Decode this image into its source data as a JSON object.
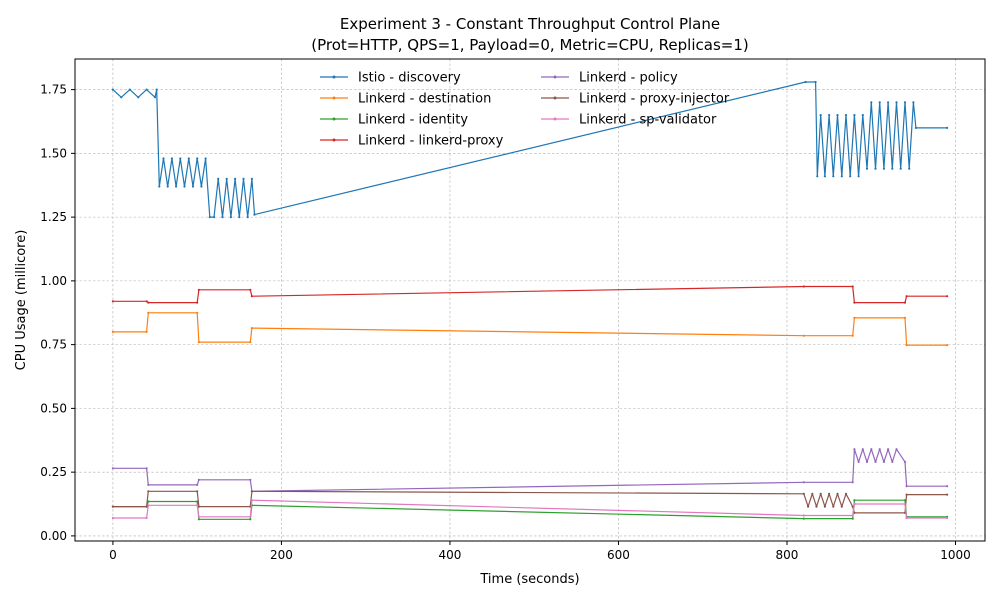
{
  "chart_data": {
    "type": "line",
    "title": "Experiment 3 - Constant Throughput Control Plane",
    "subtitle": "(Prot=HTTP, QPS=1, Payload=0, Metric=CPU, Replicas=1)",
    "xlabel": "Time (seconds)",
    "ylabel": "CPU Usage (millicore)",
    "xlim": [
      -45,
      1035
    ],
    "ylim": [
      -0.02,
      1.87
    ],
    "xticks": [
      0,
      200,
      400,
      600,
      800,
      1000
    ],
    "yticks": [
      0.0,
      0.25,
      0.5,
      0.75,
      1.0,
      1.25,
      1.5,
      1.75
    ],
    "xtick_labels": [
      "0",
      "200",
      "400",
      "600",
      "800",
      "1000"
    ],
    "ytick_labels": [
      "0.00",
      "0.25",
      "0.50",
      "0.75",
      "1.00",
      "1.25",
      "1.50",
      "1.75"
    ],
    "grid": true,
    "legend": "upper center, 2 columns",
    "series": [
      {
        "name": "Istio - discovery",
        "color": "#1f77b4",
        "segments": [
          [
            0,
            1.75
          ],
          [
            10,
            1.72
          ],
          [
            20,
            1.75
          ],
          [
            30,
            1.72
          ],
          [
            40,
            1.75
          ],
          [
            50,
            1.72
          ],
          [
            52,
            1.75
          ],
          [
            55,
            1.37
          ],
          [
            60,
            1.48
          ],
          [
            65,
            1.37
          ],
          [
            70,
            1.48
          ],
          [
            75,
            1.37
          ],
          [
            80,
            1.48
          ],
          [
            85,
            1.37
          ],
          [
            90,
            1.48
          ],
          [
            95,
            1.37
          ],
          [
            100,
            1.48
          ],
          [
            105,
            1.37
          ],
          [
            110,
            1.48
          ],
          [
            115,
            1.25
          ],
          [
            120,
            1.25
          ],
          [
            125,
            1.4
          ],
          [
            130,
            1.25
          ],
          [
            135,
            1.4
          ],
          [
            140,
            1.25
          ],
          [
            145,
            1.4
          ],
          [
            150,
            1.25
          ],
          [
            155,
            1.4
          ],
          [
            160,
            1.25
          ],
          [
            165,
            1.4
          ],
          [
            168,
            1.26
          ],
          [
            822,
            1.78
          ],
          [
            834,
            1.78
          ],
          [
            836,
            1.41
          ],
          [
            840,
            1.65
          ],
          [
            845,
            1.41
          ],
          [
            850,
            1.65
          ],
          [
            855,
            1.41
          ],
          [
            860,
            1.65
          ],
          [
            865,
            1.41
          ],
          [
            870,
            1.65
          ],
          [
            875,
            1.41
          ],
          [
            880,
            1.65
          ],
          [
            885,
            1.41
          ],
          [
            890,
            1.65
          ],
          [
            895,
            1.44
          ],
          [
            900,
            1.7
          ],
          [
            905,
            1.44
          ],
          [
            910,
            1.7
          ],
          [
            915,
            1.44
          ],
          [
            920,
            1.7
          ],
          [
            925,
            1.44
          ],
          [
            930,
            1.7
          ],
          [
            935,
            1.44
          ],
          [
            940,
            1.7
          ],
          [
            945,
            1.44
          ],
          [
            950,
            1.7
          ],
          [
            953,
            1.6
          ],
          [
            990,
            1.6
          ]
        ]
      },
      {
        "name": "Linkerd - destination",
        "color": "#ff7f0e",
        "segments": [
          [
            0,
            0.8
          ],
          [
            40,
            0.8
          ],
          [
            42,
            0.875
          ],
          [
            100,
            0.875
          ],
          [
            102,
            0.76
          ],
          [
            163,
            0.76
          ],
          [
            165,
            0.815
          ],
          [
            820,
            0.785
          ],
          [
            878,
            0.785
          ],
          [
            880,
            0.855
          ],
          [
            940,
            0.855
          ],
          [
            942,
            0.748
          ],
          [
            990,
            0.748
          ]
        ]
      },
      {
        "name": "Linkerd - identity",
        "color": "#2ca02c",
        "segments": [
          [
            0,
            0.115
          ],
          [
            40,
            0.115
          ],
          [
            42,
            0.135
          ],
          [
            100,
            0.135
          ],
          [
            102,
            0.065
          ],
          [
            163,
            0.065
          ],
          [
            165,
            0.12
          ],
          [
            820,
            0.068
          ],
          [
            878,
            0.068
          ],
          [
            880,
            0.14
          ],
          [
            940,
            0.14
          ],
          [
            942,
            0.075
          ],
          [
            990,
            0.075
          ]
        ]
      },
      {
        "name": "Linkerd - linkerd-proxy",
        "color": "#d62728",
        "segments": [
          [
            0,
            0.92
          ],
          [
            40,
            0.92
          ],
          [
            42,
            0.915
          ],
          [
            100,
            0.915
          ],
          [
            102,
            0.965
          ],
          [
            163,
            0.965
          ],
          [
            165,
            0.94
          ],
          [
            820,
            0.978
          ],
          [
            878,
            0.978
          ],
          [
            880,
            0.915
          ],
          [
            940,
            0.915
          ],
          [
            942,
            0.94
          ],
          [
            990,
            0.94
          ]
        ]
      },
      {
        "name": "Linkerd - policy",
        "color": "#9467bd",
        "segments": [
          [
            0,
            0.265
          ],
          [
            40,
            0.265
          ],
          [
            42,
            0.2
          ],
          [
            100,
            0.2
          ],
          [
            102,
            0.22
          ],
          [
            163,
            0.22
          ],
          [
            165,
            0.175
          ],
          [
            820,
            0.21
          ],
          [
            878,
            0.21
          ],
          [
            880,
            0.34
          ],
          [
            885,
            0.29
          ],
          [
            890,
            0.34
          ],
          [
            895,
            0.29
          ],
          [
            900,
            0.34
          ],
          [
            905,
            0.29
          ],
          [
            910,
            0.34
          ],
          [
            915,
            0.29
          ],
          [
            920,
            0.34
          ],
          [
            925,
            0.29
          ],
          [
            930,
            0.34
          ],
          [
            940,
            0.29
          ],
          [
            942,
            0.195
          ],
          [
            990,
            0.195
          ]
        ]
      },
      {
        "name": "Linkerd - proxy-injector",
        "color": "#8c564b",
        "segments": [
          [
            0,
            0.115
          ],
          [
            40,
            0.115
          ],
          [
            42,
            0.175
          ],
          [
            100,
            0.175
          ],
          [
            102,
            0.115
          ],
          [
            163,
            0.115
          ],
          [
            165,
            0.175
          ],
          [
            820,
            0.165
          ],
          [
            825,
            0.115
          ],
          [
            830,
            0.165
          ],
          [
            835,
            0.115
          ],
          [
            840,
            0.165
          ],
          [
            845,
            0.115
          ],
          [
            850,
            0.165
          ],
          [
            855,
            0.115
          ],
          [
            860,
            0.165
          ],
          [
            865,
            0.115
          ],
          [
            870,
            0.165
          ],
          [
            878,
            0.115
          ],
          [
            880,
            0.09
          ],
          [
            940,
            0.09
          ],
          [
            942,
            0.162
          ],
          [
            990,
            0.162
          ]
        ]
      },
      {
        "name": "Linkerd - sp-validator",
        "color": "#e377c2",
        "segments": [
          [
            0,
            0.07
          ],
          [
            40,
            0.07
          ],
          [
            42,
            0.12
          ],
          [
            100,
            0.12
          ],
          [
            102,
            0.075
          ],
          [
            163,
            0.075
          ],
          [
            165,
            0.14
          ],
          [
            820,
            0.08
          ],
          [
            878,
            0.08
          ],
          [
            880,
            0.125
          ],
          [
            940,
            0.125
          ],
          [
            942,
            0.07
          ],
          [
            990,
            0.07
          ]
        ]
      }
    ]
  }
}
